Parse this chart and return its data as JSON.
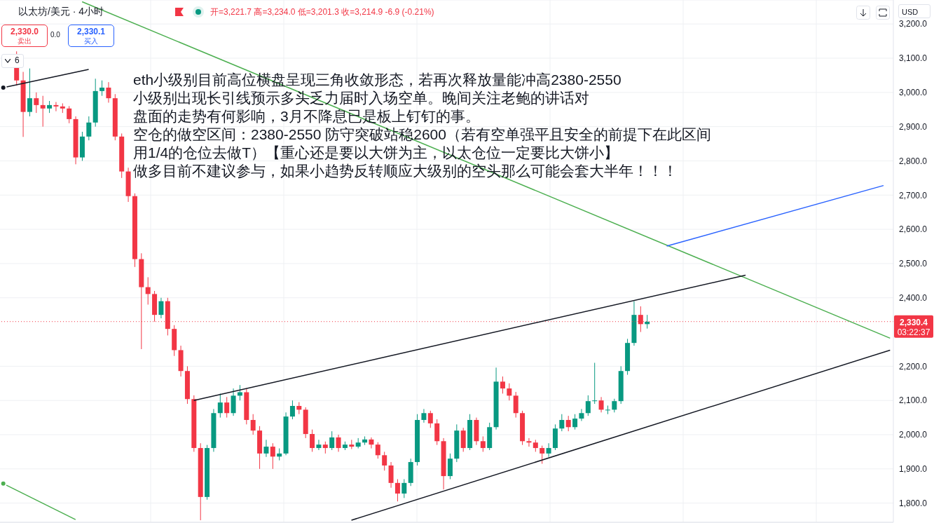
{
  "chart_data": {
    "type": "candlestick",
    "title": "以太坊/美元 · 4小时",
    "categories": [
      null,
      null,
      null,
      null,
      null,
      null,
      null,
      null,
      null,
      null,
      null,
      null,
      null,
      null,
      null,
      null,
      null,
      null,
      null,
      null,
      null,
      null,
      null,
      null,
      null,
      null,
      null,
      null,
      null,
      null,
      null,
      null,
      null,
      null,
      null,
      null,
      null,
      null,
      null,
      null,
      null,
      null,
      null,
      null,
      null,
      null,
      null,
      null,
      null,
      null,
      null,
      null,
      null,
      null,
      null,
      null,
      null,
      null,
      null,
      null,
      null,
      null,
      null,
      null,
      null,
      null,
      null,
      null,
      null,
      null,
      null,
      null,
      null,
      null,
      null,
      null,
      null,
      null,
      null,
      null,
      null,
      null,
      null,
      null,
      null,
      null,
      null,
      null,
      null,
      null,
      null,
      null,
      null,
      null,
      null,
      null,
      null,
      null,
      null,
      null,
      null,
      null,
      null,
      null,
      null,
      null,
      null,
      null,
      null,
      null,
      null,
      null,
      null,
      null,
      null,
      null,
      null,
      null,
      null,
      null,
      null,
      null,
      null,
      null,
      null,
      null,
      null,
      null,
      null,
      null,
      null,
      null,
      null,
      null,
      null,
      null
    ],
    "ohlc": [
      null,
      null,
      [
        3110,
        3120,
        3020,
        3035
      ],
      [
        3035,
        3060,
        2870,
        2943
      ],
      [
        2943,
        3070,
        2930,
        2983
      ],
      [
        2983,
        3000,
        2940,
        2963
      ],
      [
        2963,
        2990,
        2900,
        2953
      ],
      [
        2953,
        2975,
        2940,
        2963
      ],
      [
        2963,
        2972,
        2945,
        2959
      ],
      [
        2959,
        2968,
        2940,
        2953
      ],
      [
        2953,
        2960,
        2910,
        2922
      ],
      [
        2922,
        2930,
        2790,
        2810
      ],
      [
        2810,
        2885,
        2800,
        2871
      ],
      [
        2871,
        2930,
        2860,
        2912
      ],
      [
        2912,
        3040,
        2900,
        3004
      ],
      [
        3004,
        3035,
        2990,
        3014
      ],
      [
        3014,
        3030,
        2970,
        2983
      ],
      [
        2983,
        2995,
        2860,
        2871
      ],
      [
        2871,
        2880,
        2750,
        2769
      ],
      [
        2769,
        2780,
        2680,
        2697
      ],
      [
        2697,
        2705,
        2490,
        2513
      ],
      [
        2513,
        2530,
        2250,
        2431
      ],
      [
        2431,
        2460,
        2380,
        2411
      ],
      [
        2411,
        2420,
        2330,
        2350
      ],
      [
        2350,
        2400,
        2340,
        2390
      ],
      [
        2390,
        2400,
        2290,
        2309
      ],
      [
        2309,
        2320,
        2230,
        2247
      ],
      [
        2247,
        2260,
        2170,
        2186
      ],
      [
        2186,
        2200,
        2090,
        2104
      ],
      [
        2104,
        2115,
        1950,
        1961
      ],
      [
        1961,
        1975,
        1750,
        1818
      ],
      [
        1818,
        1970,
        1810,
        1961
      ],
      [
        1961,
        2075,
        1950,
        2063
      ],
      [
        2063,
        2120,
        2050,
        2094
      ],
      [
        2094,
        2110,
        2050,
        2063
      ],
      [
        2063,
        2135,
        2055,
        2114
      ],
      [
        2114,
        2145,
        2100,
        2124
      ],
      [
        2124,
        2135,
        2030,
        2043
      ],
      [
        2043,
        2060,
        2000,
        2012
      ],
      [
        2012,
        2025,
        1900,
        1945
      ],
      [
        1945,
        1985,
        1935,
        1965
      ],
      [
        1965,
        1975,
        1900,
        1936
      ],
      [
        1936,
        1960,
        1925,
        1945
      ],
      [
        1945,
        2065,
        1940,
        2053
      ],
      [
        2053,
        2100,
        2045,
        2084
      ],
      [
        2084,
        2095,
        2060,
        2073
      ],
      [
        2073,
        2080,
        1990,
        2002
      ],
      [
        2002,
        2015,
        1950,
        1961
      ],
      [
        1961,
        1985,
        1955,
        1971
      ],
      [
        1971,
        1980,
        1945,
        1961
      ],
      [
        1961,
        2010,
        1955,
        1992
      ],
      [
        1992,
        2000,
        1950,
        1961
      ],
      [
        1961,
        1980,
        1955,
        1971
      ],
      [
        1971,
        1985,
        1958,
        1965
      ],
      [
        1965,
        1990,
        1960,
        1977
      ],
      [
        1977,
        1995,
        1970,
        1986
      ],
      [
        1986,
        1992,
        1960,
        1971
      ],
      [
        1971,
        1978,
        1930,
        1940
      ],
      [
        1940,
        1950,
        1895,
        1910
      ],
      [
        1910,
        1920,
        1845,
        1859
      ],
      [
        1859,
        1870,
        1805,
        1828
      ],
      [
        1828,
        1870,
        1815,
        1859
      ],
      [
        1859,
        1930,
        1850,
        1920
      ],
      [
        1920,
        2060,
        1910,
        2043
      ],
      [
        2043,
        2075,
        2035,
        2063
      ],
      [
        2063,
        2070,
        2020,
        2033
      ],
      [
        2033,
        2045,
        1970,
        1981
      ],
      [
        1981,
        1990,
        1840,
        1879
      ],
      [
        1879,
        1945,
        1870,
        1930
      ],
      [
        1930,
        2030,
        1920,
        2012
      ],
      [
        2012,
        2020,
        1950,
        1961
      ],
      [
        1961,
        2060,
        1955,
        2043
      ],
      [
        2043,
        2050,
        1970,
        1981
      ],
      [
        1981,
        1995,
        1950,
        1961
      ],
      [
        1961,
        2035,
        1955,
        2022
      ],
      [
        2022,
        2196,
        2015,
        2155
      ],
      [
        2155,
        2170,
        2120,
        2135
      ],
      [
        2135,
        2150,
        2100,
        2114
      ],
      [
        2114,
        2125,
        2050,
        2063
      ],
      [
        2063,
        2070,
        1970,
        1981
      ],
      [
        1981,
        1990,
        1965,
        1977
      ],
      [
        1977,
        1985,
        1950,
        1961
      ],
      [
        1961,
        1968,
        1915,
        1945
      ],
      [
        1945,
        1975,
        1935,
        1961
      ],
      [
        1961,
        2030,
        1955,
        2018
      ],
      [
        2018,
        2060,
        2010,
        2043
      ],
      [
        2043,
        2055,
        2010,
        2022
      ],
      [
        2022,
        2060,
        2015,
        2047
      ],
      [
        2047,
        2075,
        2040,
        2063
      ],
      [
        2063,
        2115,
        2055,
        2098
      ],
      [
        2098,
        2210,
        2090,
        2100
      ],
      [
        2100,
        2110,
        2065,
        2073
      ],
      [
        2073,
        2085,
        2060,
        2073
      ],
      [
        2073,
        2105,
        2065,
        2098
      ],
      [
        2098,
        2200,
        2090,
        2186
      ],
      [
        2186,
        2280,
        2175,
        2268
      ],
      [
        2268,
        2390,
        2260,
        2350
      ],
      [
        2350,
        2375,
        2300,
        2323
      ],
      [
        2323,
        2350,
        2310,
        2330
      ],
      null,
      null,
      null,
      null,
      null,
      null,
      null,
      null,
      null,
      null,
      null,
      null,
      null,
      null,
      null,
      null,
      null,
      null,
      null,
      null,
      null,
      null,
      null,
      null,
      null,
      null,
      null,
      null,
      null,
      null,
      null,
      null,
      null,
      null,
      null,
      null,
      null
    ],
    "colors": [
      null,
      null,
      "#f23645",
      "#f23645",
      "#089981",
      "#f23645",
      "#f23645",
      "#089981",
      "#f23645",
      "#f23645",
      "#f23645",
      "#f23645",
      "#089981",
      "#089981",
      "#089981",
      "#089981",
      "#f23645",
      "#f23645",
      "#f23645",
      "#f23645",
      "#f23645",
      "#f23645",
      "#f23645",
      "#f23645",
      "#089981",
      "#f23645",
      "#f23645",
      "#f23645",
      "#f23645",
      "#f23645",
      "#f23645",
      "#089981",
      "#089981",
      "#089981",
      "#f23645",
      "#089981",
      "#089981",
      "#f23645",
      "#f23645",
      "#f23645",
      "#089981",
      "#f23645",
      "#089981",
      "#089981",
      "#089981",
      "#f23645",
      "#f23645",
      "#f23645",
      "#089981",
      "#f23645",
      "#089981",
      "#f23645",
      "#089981",
      "#f23645",
      "#089981",
      "#089981",
      "#f23645",
      "#f23645",
      "#f23645",
      "#f23645",
      "#f23645",
      "#089981",
      "#089981",
      "#089981",
      "#089981",
      "#f23645",
      "#f23645",
      "#f23645",
      "#089981",
      "#089981",
      "#f23645",
      "#089981",
      "#f23645",
      "#f23645",
      "#089981",
      "#089981",
      "#f23645",
      "#f23645",
      "#f23645",
      "#f23645",
      "#f23645",
      "#f23645",
      "#f23645",
      "#089981",
      "#089981",
      "#089981",
      "#f23645",
      "#089981",
      "#089981",
      "#089981",
      "#089981",
      "#f23645",
      "#089981",
      "#089981",
      "#089981",
      "#089981",
      "#089981",
      "#f23645",
      "#089981",
      null,
      null,
      null,
      null,
      null,
      null,
      null,
      null,
      null,
      null,
      null,
      null,
      null,
      null,
      null,
      null,
      null,
      null,
      null,
      null,
      null,
      null,
      null,
      null,
      null,
      null,
      null,
      null,
      null,
      null,
      null,
      null,
      null,
      null,
      null,
      null,
      null
    ],
    "series": [
      {
        "type": "line",
        "color": "#4caf50",
        "values": [
          null,
          null,
          null,
          null,
          null,
          null,
          null,
          null,
          null,
          null,
          null,
          null,
          3265,
          null,
          null,
          null,
          null,
          null,
          null,
          null,
          null,
          null,
          null,
          null,
          null,
          null,
          null,
          null,
          null,
          null,
          null,
          null,
          null,
          null,
          null,
          null,
          null,
          null,
          null,
          null,
          null,
          null,
          null,
          null,
          null,
          null,
          null,
          null,
          null,
          null,
          null,
          null,
          null,
          null,
          null,
          null,
          null,
          null,
          null,
          null,
          null,
          null,
          null,
          null,
          null,
          null,
          null,
          null,
          null,
          null,
          null,
          null,
          null,
          null,
          null,
          null,
          null,
          null,
          null,
          null,
          null,
          null,
          null,
          null,
          null,
          null,
          null,
          null,
          null,
          null,
          null,
          null,
          null,
          null,
          null,
          null,
          null,
          null,
          null,
          null,
          null,
          null,
          null,
          null,
          null,
          null,
          null,
          null,
          null,
          null,
          null,
          null,
          null,
          null,
          null,
          null,
          null,
          null,
          null,
          null,
          null,
          null,
          null,
          null,
          null,
          null,
          null,
          null,
          null,
          null,
          null,
          null,
          null,
          null,
          null,
          2282
        ]
      },
      {
        "type": "line",
        "color": "#4caf50",
        "values": [
          1857,
          null,
          null,
          null,
          null,
          null,
          null,
          null,
          null,
          null,
          null,
          1752,
          null,
          null,
          null,
          null,
          null,
          null,
          null,
          null,
          null,
          null,
          null,
          null,
          null,
          null,
          null,
          null,
          null,
          null,
          null,
          null,
          null,
          null,
          null,
          null,
          null,
          null,
          null,
          null,
          null,
          null,
          null,
          null,
          null,
          null,
          null,
          null,
          null,
          null,
          null,
          null,
          null,
          null,
          null,
          null,
          null,
          null,
          null,
          null,
          null,
          null,
          null,
          null,
          null,
          null,
          null,
          null,
          null,
          null,
          null,
          null,
          null,
          null,
          null,
          null,
          null,
          null,
          null,
          null,
          null,
          null,
          null,
          null,
          null,
          null,
          null,
          null,
          null,
          null,
          null,
          null,
          null,
          null,
          null,
          null,
          null,
          null,
          null,
          null,
          null,
          null,
          null,
          null,
          null,
          null,
          null,
          null,
          null,
          null,
          null,
          null,
          null,
          null,
          null,
          null,
          null,
          null,
          null,
          null,
          null,
          null,
          null,
          null,
          null,
          null,
          null,
          null,
          null,
          null,
          null,
          null,
          null,
          null,
          null,
          null
        ]
      },
      {
        "type": "line",
        "color": "#131722",
        "values": [
          3014,
          null,
          null,
          null,
          null,
          null,
          null,
          null,
          null,
          null,
          null,
          null,
          null,
          3067,
          null,
          null,
          null,
          null,
          null,
          null,
          null,
          null,
          null,
          null,
          null,
          null,
          null,
          null,
          null,
          null,
          null,
          null,
          null,
          null,
          null,
          null,
          null,
          null,
          null,
          null,
          null,
          null,
          null,
          null,
          null,
          null,
          null,
          null,
          null,
          null,
          null,
          null,
          null,
          null,
          null,
          null,
          null,
          null,
          null,
          null,
          null,
          null,
          null,
          null,
          null,
          null,
          null,
          null,
          null,
          null,
          null,
          null,
          null,
          null,
          null,
          null,
          null,
          null,
          null,
          null,
          null,
          null,
          null,
          null,
          null,
          null,
          null,
          null,
          null,
          null,
          null,
          null,
          null,
          null,
          null,
          null,
          null,
          null,
          null,
          null,
          null,
          null,
          null,
          null,
          null,
          null,
          null,
          null,
          null,
          null,
          null,
          null,
          null,
          null,
          null,
          null,
          null,
          null,
          null,
          null,
          null,
          null,
          null,
          null,
          null,
          null,
          null,
          null,
          null,
          null,
          null,
          null,
          null,
          null,
          null,
          null
        ]
      },
      {
        "type": "line",
        "color": "#131722",
        "values": [
          null,
          null,
          null,
          null,
          null,
          null,
          null,
          null,
          null,
          null,
          null,
          null,
          null,
          null,
          null,
          null,
          null,
          null,
          null,
          null,
          null,
          null,
          null,
          null,
          null,
          null,
          null,
          null,
          null,
          2100,
          null,
          null,
          null,
          null,
          null,
          null,
          null,
          null,
          null,
          null,
          null,
          null,
          null,
          null,
          null,
          null,
          null,
          null,
          null,
          null,
          null,
          null,
          null,
          null,
          null,
          null,
          null,
          null,
          null,
          null,
          null,
          null,
          null,
          null,
          null,
          null,
          null,
          null,
          null,
          null,
          null,
          null,
          null,
          null,
          null,
          null,
          null,
          null,
          null,
          null,
          null,
          null,
          null,
          null,
          null,
          null,
          null,
          null,
          null,
          null,
          null,
          null,
          null,
          null,
          null,
          null,
          null,
          null,
          null,
          null,
          null,
          null,
          null,
          null,
          null,
          null,
          null,
          null,
          null,
          null,
          null,
          null,
          null,
          2466,
          null,
          null,
          null,
          null,
          null,
          null,
          null,
          null,
          null,
          null,
          null,
          null,
          null,
          null,
          null,
          null,
          null,
          null,
          null,
          null,
          null,
          null
        ]
      },
      {
        "type": "line",
        "color": "#131722",
        "values": [
          null,
          null,
          null,
          null,
          null,
          null,
          null,
          null,
          null,
          null,
          null,
          null,
          null,
          null,
          null,
          null,
          null,
          null,
          null,
          null,
          null,
          null,
          null,
          null,
          null,
          null,
          null,
          null,
          null,
          null,
          null,
          null,
          null,
          null,
          null,
          null,
          null,
          null,
          null,
          null,
          null,
          null,
          null,
          null,
          null,
          null,
          null,
          null,
          null,
          null,
          null,
          null,
          null,
          1750,
          null,
          null,
          null,
          null,
          null,
          null,
          null,
          null,
          null,
          null,
          null,
          null,
          null,
          null,
          null,
          null,
          null,
          null,
          null,
          null,
          null,
          null,
          null,
          null,
          null,
          null,
          null,
          null,
          null,
          null,
          null,
          null,
          null,
          null,
          null,
          null,
          null,
          null,
          null,
          null,
          null,
          null,
          null,
          null,
          null,
          null,
          null,
          null,
          null,
          null,
          null,
          null,
          null,
          null,
          null,
          null,
          null,
          null,
          null,
          null,
          null,
          null,
          null,
          null,
          null,
          null,
          null,
          null,
          null,
          null,
          null,
          null,
          null,
          null,
          null,
          null,
          null,
          null,
          null,
          null,
          null,
          2247
        ]
      },
      {
        "type": "line",
        "color": "#2962ff",
        "values": [
          null,
          null,
          null,
          null,
          null,
          null,
          null,
          null,
          null,
          null,
          null,
          null,
          null,
          null,
          null,
          null,
          null,
          null,
          null,
          null,
          null,
          null,
          null,
          null,
          null,
          null,
          null,
          null,
          null,
          null,
          null,
          null,
          null,
          null,
          null,
          null,
          null,
          null,
          null,
          null,
          null,
          null,
          null,
          null,
          null,
          null,
          null,
          null,
          null,
          null,
          null,
          null,
          null,
          null,
          null,
          null,
          null,
          null,
          null,
          null,
          null,
          null,
          null,
          null,
          null,
          null,
          null,
          null,
          null,
          null,
          null,
          null,
          null,
          null,
          null,
          null,
          null,
          null,
          null,
          null,
          null,
          null,
          null,
          null,
          null,
          null,
          null,
          null,
          null,
          null,
          null,
          null,
          null,
          null,
          null,
          null,
          null,
          null,
          null,
          null,
          null,
          2551,
          null,
          null,
          null,
          null,
          null,
          null,
          null,
          null,
          null,
          null,
          null,
          null,
          null,
          null,
          null,
          null,
          null,
          null,
          null,
          null,
          null,
          null,
          null,
          null,
          null,
          null,
          null,
          null,
          null,
          null,
          null,
          null,
          2728,
          null
        ]
      }
    ],
    "ylim": [
      1744,
      3270
    ],
    "yticks": [
      {
        "value": 1800,
        "label": "1,800.0"
      },
      {
        "value": 1900,
        "label": "1,900.0"
      },
      {
        "value": 2000,
        "label": "2,000.0"
      },
      {
        "value": 2100,
        "label": "2,100.0"
      },
      {
        "value": 2200,
        "label": "2,200.0"
      },
      {
        "value": 2400,
        "label": "2,400.0"
      },
      {
        "value": 2500,
        "label": "2,500.0"
      },
      {
        "value": 2600,
        "label": "2,600.0"
      },
      {
        "value": 2700,
        "label": "2,700.0"
      },
      {
        "value": 2800,
        "label": "2,800.0"
      },
      {
        "value": 2900,
        "label": "2,900.0"
      },
      {
        "value": 3000,
        "label": "3,000.0"
      },
      {
        "value": 3100,
        "label": "3,100.0"
      },
      {
        "value": 3200,
        "label": "3,200.0"
      }
    ],
    "grid": true,
    "tick_labels": "y",
    "ref_lines": [
      {
        "axis": "y",
        "value": 2330.4,
        "label": "2,330.4",
        "color": "#f23645",
        "line_style": "dotted"
      }
    ],
    "annotations": [
      "开=3,221.7 高=3,234.0 低=3,201.3 收=3,214.9 -6.9 (-0.21%)",
      "2,330.0",
      "卖出",
      "0.0",
      "2,330.1",
      "买入",
      "6",
      "USD",
      "03:22:37",
      "eth小级别目前高位横盘呈现三角收敛形态，若再次释放量能冲高2380-2550",
      "小级别出现长引线预示多头乏力届时入场空单。晚间关注老鲍的讲话对",
      "盘面的走势有何影响，3月不降息已是板上钉钉的事。",
      "空仓的做空区间：2380-2550 防守突破站稳2600（若有空单强平且安全的前提下在此区间",
      "用1/4的仓位去做T）【重心还是要以大饼为主，以太仓位一定要比大饼小】",
      "做多目前不建议参与，如果小趋势反转顺应大级别的空头那么可能会套大半年！！！"
    ]
  }
}
